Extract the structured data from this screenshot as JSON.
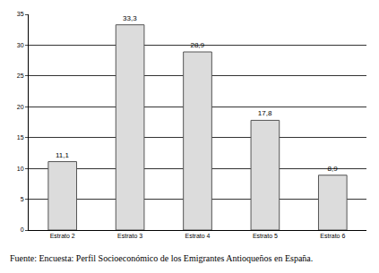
{
  "chart_data": {
    "type": "bar",
    "categories": [
      "Estrato 2",
      "Estrato 3",
      "Estrato 4",
      "Estrato 5",
      "Estrato 6"
    ],
    "values": [
      11.1,
      33.3,
      28.9,
      17.8,
      8.9
    ],
    "value_labels": [
      "11,1",
      "33,3",
      "28,9",
      "17,8",
      "8,9"
    ],
    "data_labels": true,
    "color": "#dcdcdc",
    "ylim": [
      0,
      35
    ],
    "yticks": [
      0,
      5,
      10,
      15,
      20,
      25,
      30,
      35
    ],
    "grid": true,
    "annotations": [
      "Fuente: Encuesta: Perfil Socioeconómico de los Emigrantes Antioqueños en España."
    ]
  }
}
